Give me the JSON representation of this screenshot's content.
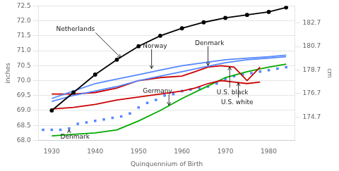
{
  "chart_data": {
    "type": "line",
    "xlabel": "Quinquennium of Birth",
    "ylabel": "inches",
    "y2label": "cm",
    "xlim": [
      1927,
      1986
    ],
    "xticks": [
      1930,
      1940,
      1950,
      1960,
      1970,
      1980
    ],
    "ylim": [
      68.0,
      72.5
    ],
    "yticks": [
      {
        "value": 68.0,
        "label": "68.0"
      },
      68.5,
      {
        "value": 69.0,
        "label": "69.0"
      },
      69.5,
      {
        "value": 70.0,
        "label": "70.0"
      },
      70.5,
      {
        "value": 71.0,
        "label": "71.0"
      },
      71.5,
      {
        "value": 72.0,
        "label": "72.0"
      },
      72.5
    ],
    "y2lim": [
      172.72,
      184.15
    ],
    "y2ticks": [
      174.7,
      176.7,
      178.7,
      180.7,
      182.7
    ],
    "grid": "y",
    "series": [
      {
        "color": "#000000",
        "marker": "circle",
        "line_style": "solid",
        "x": [
          1930,
          1935,
          1940,
          1945,
          1950,
          1955,
          1960,
          1965,
          1970,
          1975,
          1980,
          1984
        ],
        "values": [
          69.0,
          69.6,
          70.2,
          70.7,
          71.15,
          71.5,
          71.75,
          71.95,
          72.1,
          72.2,
          72.3,
          72.45
        ]
      },
      {
        "color": "#5588ff",
        "marker": "none",
        "line_style": "solid",
        "x": [
          1930,
          1935,
          1940,
          1945,
          1950,
          1955,
          1960,
          1965,
          1970,
          1975,
          1980,
          1984
        ],
        "values": [
          69.4,
          69.65,
          69.9,
          70.05,
          70.2,
          70.35,
          70.5,
          70.6,
          70.7,
          70.75,
          70.8,
          70.85
        ]
      },
      {
        "color": "#5588ff",
        "marker": "none",
        "line_style": "solid",
        "x": [
          1930,
          1935,
          1940,
          1945,
          1950,
          1955,
          1960,
          1965,
          1970,
          1975,
          1980,
          1984
        ],
        "values": [
          69.3,
          69.5,
          69.65,
          69.8,
          70.0,
          70.15,
          70.3,
          70.45,
          70.6,
          70.7,
          70.75,
          70.8
        ]
      },
      {
        "color": "#cc0000",
        "marker": "none",
        "line_style": "solid",
        "x": [
          1930,
          1935,
          1940,
          1945,
          1950,
          1955,
          1960,
          1963,
          1966,
          1969,
          1972,
          1975,
          1978
        ],
        "values": [
          69.55,
          69.55,
          69.6,
          69.75,
          70.0,
          70.1,
          70.15,
          70.3,
          70.45,
          70.5,
          70.45,
          70.0,
          70.45
        ]
      },
      {
        "color": "#cc0000",
        "marker": "none",
        "line_style": "solid",
        "x": [
          1930,
          1935,
          1940,
          1945,
          1950,
          1955,
          1960,
          1963,
          1966,
          1969,
          1972,
          1975,
          1978
        ],
        "values": [
          69.05,
          69.1,
          69.2,
          69.35,
          69.45,
          69.55,
          69.65,
          69.75,
          69.9,
          70.0,
          69.95,
          69.9,
          69.95
        ]
      },
      {
        "color": "#00aa00",
        "marker": "none",
        "line_style": "solid",
        "x": [
          1930,
          1935,
          1940,
          1945,
          1950,
          1955,
          1960,
          1965,
          1970,
          1975,
          1980,
          1984
        ],
        "values": [
          68.15,
          68.2,
          68.25,
          68.35,
          68.65,
          69.0,
          69.4,
          69.75,
          70.1,
          70.3,
          70.45,
          70.55
        ]
      },
      {
        "color": "#5588ff",
        "marker": "square",
        "line_style": "none",
        "x": [
          1928,
          1930,
          1932,
          1934,
          1936,
          1938,
          1940,
          1942,
          1944,
          1946,
          1948,
          1950,
          1952,
          1954,
          1956,
          1958,
          1960,
          1962,
          1964,
          1966,
          1968,
          1970,
          1972,
          1974,
          1976,
          1978,
          1980,
          1982,
          1984
        ],
        "values": [
          68.35,
          68.35,
          68.35,
          68.4,
          68.55,
          68.6,
          68.65,
          68.7,
          68.75,
          68.8,
          68.9,
          69.1,
          69.25,
          69.35,
          69.5,
          69.55,
          69.65,
          69.7,
          69.75,
          69.8,
          69.9,
          70.05,
          70.15,
          70.2,
          70.25,
          70.3,
          70.35,
          70.4,
          70.45
        ]
      }
    ],
    "annotations": [
      {
        "text": "Netherlands",
        "xy": [
          1946,
          70.75
        ],
        "xytext": [
          1931,
          71.65
        ]
      },
      {
        "text": "Norway",
        "xy": [
          1953,
          70.38
        ],
        "xytext": [
          1951,
          71.1
        ]
      },
      {
        "text": "Denmark",
        "xy": [
          1966,
          70.48
        ],
        "xytext": [
          1963,
          71.2
        ]
      },
      {
        "text": "Germany",
        "xy": [
          1957,
          69.15
        ],
        "xytext": [
          1951,
          69.58
        ]
      },
      {
        "text": "Denmark",
        "xy": [
          1934,
          68.38
        ],
        "xytext": [
          1932,
          68.05
        ]
      },
      {
        "text": "U.S. black",
        "xy": [
          1971,
          70.48
        ],
        "xytext": [
          1968,
          69.55
        ]
      },
      {
        "text": "U.S. white",
        "xy": [
          1973,
          69.95
        ],
        "xytext": [
          1969,
          69.22
        ]
      }
    ]
  }
}
